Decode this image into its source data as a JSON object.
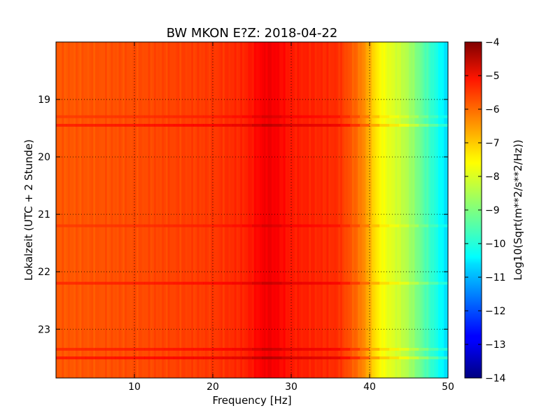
{
  "chart_data": {
    "type": "heatmap",
    "title": "BW MKON E?Z: 2018-04-22",
    "xlabel": "Frequency [Hz]",
    "ylabel": "Lokalzeit (UTC + 2 Stunde)",
    "xlim": [
      0,
      50
    ],
    "ylim": [
      23.85,
      18.0
    ],
    "x_ticks": [
      10,
      20,
      30,
      40,
      50
    ],
    "x_tick_labels": [
      "10",
      "20",
      "30",
      "40",
      "50"
    ],
    "y_ticks": [
      19,
      20,
      21,
      22,
      23
    ],
    "y_tick_labels": [
      "19",
      "20",
      "21",
      "22",
      "23"
    ],
    "grid": true,
    "colormap": "jet",
    "colorbar": {
      "label": "Log10(Sqrt(m**2/s**2/Hz))",
      "range": [
        -14,
        -4
      ],
      "ticks": [
        -4,
        -5,
        -6,
        -7,
        -8,
        -9,
        -10,
        -11,
        -12,
        -13,
        -14
      ],
      "tick_labels": [
        "−4",
        "−5",
        "−6",
        "−7",
        "−8",
        "−9",
        "−10",
        "−11",
        "−12",
        "−13",
        "−14"
      ]
    },
    "spectrum_profile": {
      "frequency_hz": [
        0,
        2,
        10,
        20,
        24,
        27,
        28,
        30,
        33,
        36,
        38,
        39,
        40,
        41,
        42,
        43,
        44,
        45,
        46,
        47,
        48,
        49,
        50
      ],
      "log10_amplitude": [
        -6.1,
        -6.1,
        -6.0,
        -5.8,
        -5.6,
        -5.1,
        -5.2,
        -5.5,
        -5.6,
        -5.7,
        -6.2,
        -6.5,
        -7.0,
        -7.6,
        -7.9,
        -8.1,
        -8.3,
        -8.6,
        -9.0,
        -9.4,
        -9.8,
        -10.2,
        -10.6
      ]
    },
    "horizontal_bands": [
      {
        "time": 19.3,
        "delta": 0.3
      },
      {
        "time": 19.45,
        "delta": 0.6
      },
      {
        "time": 21.2,
        "delta": 0.3
      },
      {
        "time": 22.2,
        "delta": 0.5
      },
      {
        "time": 23.35,
        "delta": 0.5
      },
      {
        "time": 23.5,
        "delta": 0.7
      }
    ]
  }
}
